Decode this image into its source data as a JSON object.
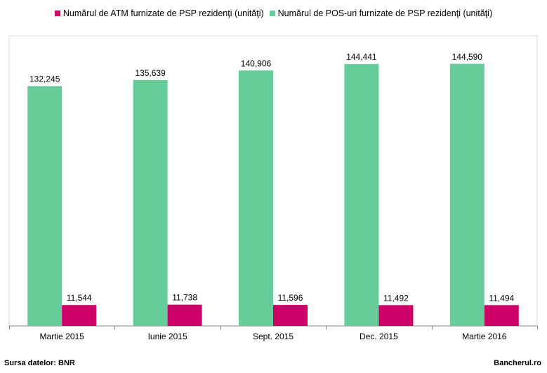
{
  "chart_data": {
    "type": "bar",
    "categories": [
      "Martie 2015",
      "Iunie 2015",
      "Sept. 2015",
      "Dec. 2015",
      "Martie 2016"
    ],
    "series": [
      {
        "name": "Numărul de ATM furnizate de PSP rezidenţi (unităţi)",
        "color": "#cc0066",
        "values": [
          11544,
          11738,
          11596,
          11492,
          11494
        ],
        "labels": [
          "11,544",
          "11,738",
          "11,596",
          "11,492",
          "11,494"
        ]
      },
      {
        "name": "Numărul de POS-uri furnizate de PSP rezidenţi (unităţi)",
        "color": "#66cc99",
        "values": [
          132245,
          135639,
          140906,
          144441,
          144590
        ],
        "labels": [
          "132,245",
          "135,639",
          "140,906",
          "144,441",
          "144,590"
        ]
      }
    ],
    "ylim": [
      0,
      160000
    ],
    "grid": false,
    "legend": "top"
  },
  "footer": {
    "source": "Sursa datelor: BNR",
    "brand": "Bancherul.ro"
  }
}
